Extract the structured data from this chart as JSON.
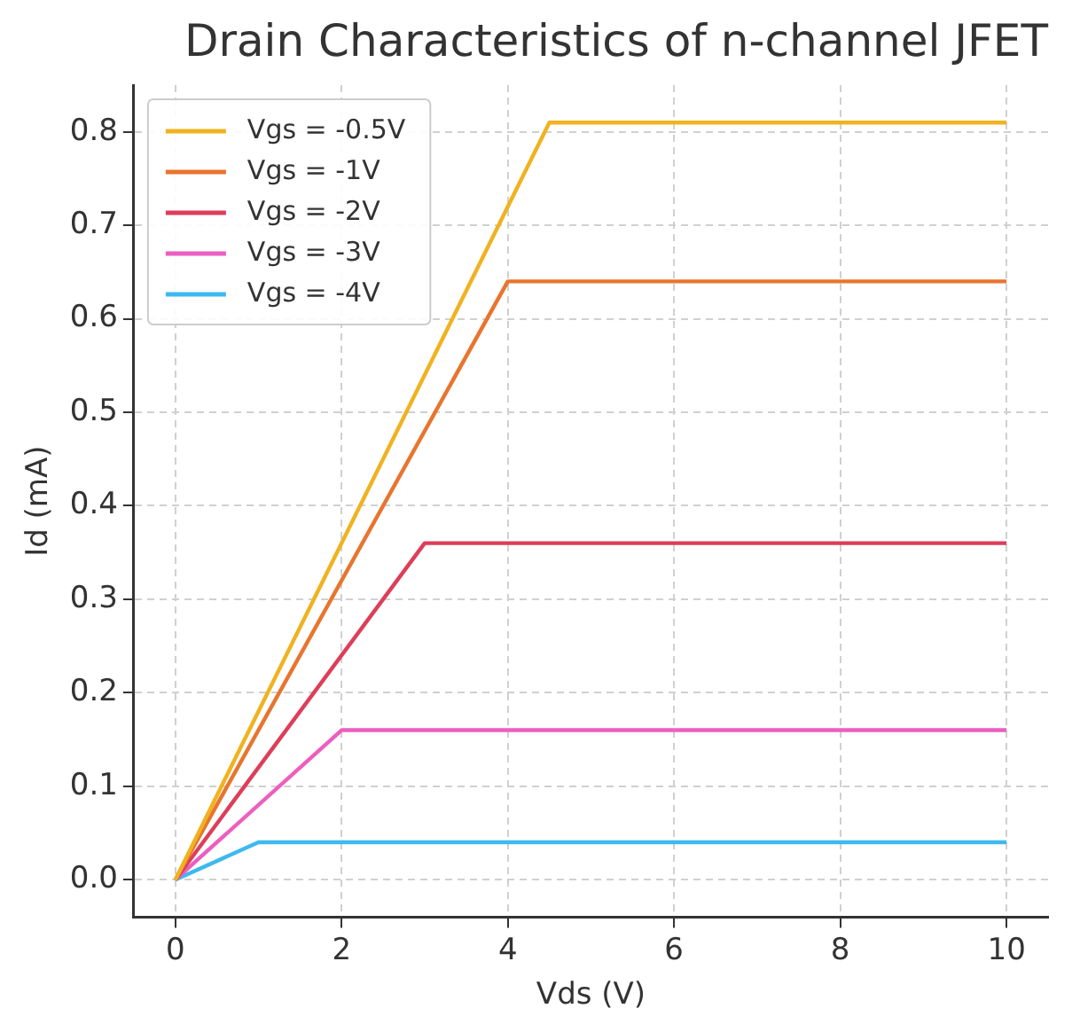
{
  "chart_data": {
    "type": "line",
    "title": "Drain Characteristics of n-channel JFET",
    "xlabel": "Vds (V)",
    "ylabel": "Id (mA)",
    "series": [
      {
        "name": "Vgs = -0.5V",
        "color": "#f0b21f",
        "x": [
          0,
          4.5,
          10
        ],
        "values": [
          0,
          0.81,
          0.81
        ]
      },
      {
        "name": "Vgs = -1V",
        "color": "#e8752f",
        "x": [
          0,
          4,
          10
        ],
        "values": [
          0,
          0.64,
          0.64
        ]
      },
      {
        "name": "Vgs = -2V",
        "color": "#dd3e5a",
        "x": [
          0,
          3,
          10
        ],
        "values": [
          0,
          0.36,
          0.36
        ]
      },
      {
        "name": "Vgs = -3V",
        "color": "#ec5fc0",
        "x": [
          0,
          2,
          10
        ],
        "values": [
          0,
          0.16,
          0.16
        ]
      },
      {
        "name": "Vgs = -4V",
        "color": "#3db9ef",
        "x": [
          0,
          1,
          10
        ],
        "values": [
          0,
          0.04,
          0.04
        ]
      }
    ],
    "xlim": [
      -0.5,
      10.5
    ],
    "xticks": [
      0,
      2,
      4,
      6,
      8,
      10
    ],
    "ylim": [
      -0.04,
      0.85
    ],
    "yticks": [
      {
        "value": 0,
        "label": "0.0"
      },
      {
        "value": 0.1,
        "label": "0.1"
      },
      {
        "value": 0.2,
        "label": "0.2"
      },
      {
        "value": 0.3,
        "label": "0.3"
      },
      {
        "value": 0.4,
        "label": "0.4"
      },
      {
        "value": 0.5,
        "label": "0.5"
      },
      {
        "value": 0.6,
        "label": "0.6"
      },
      {
        "value": 0.7,
        "label": "0.7"
      },
      {
        "value": 0.8,
        "label": "0.8"
      }
    ],
    "grid": true,
    "legend": "top left",
    "marker": "none",
    "line_style": "solid"
  }
}
